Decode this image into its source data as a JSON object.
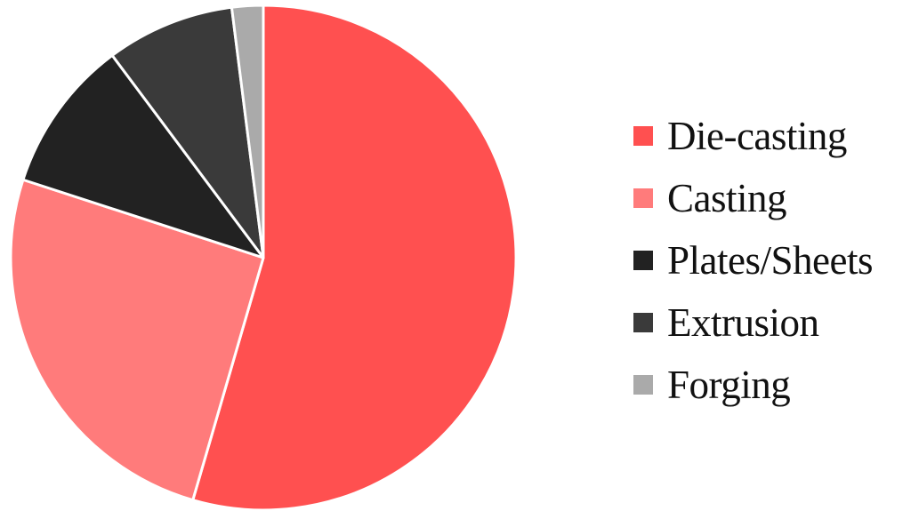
{
  "chart_data": {
    "type": "pie",
    "title": "",
    "legend_position": "right",
    "slices": [
      {
        "label": "Die-casting",
        "value": 54.5,
        "color": "#FF5050"
      },
      {
        "label": "Casting",
        "value": 25.5,
        "color": "#FF7B7B"
      },
      {
        "label": "Plates/Sheets",
        "value": 9.8,
        "color": "#222222"
      },
      {
        "label": "Extrusion",
        "value": 8.2,
        "color": "#3A3A3A"
      },
      {
        "label": "Forging",
        "value": 2.0,
        "color": "#AAAAAA"
      }
    ]
  }
}
